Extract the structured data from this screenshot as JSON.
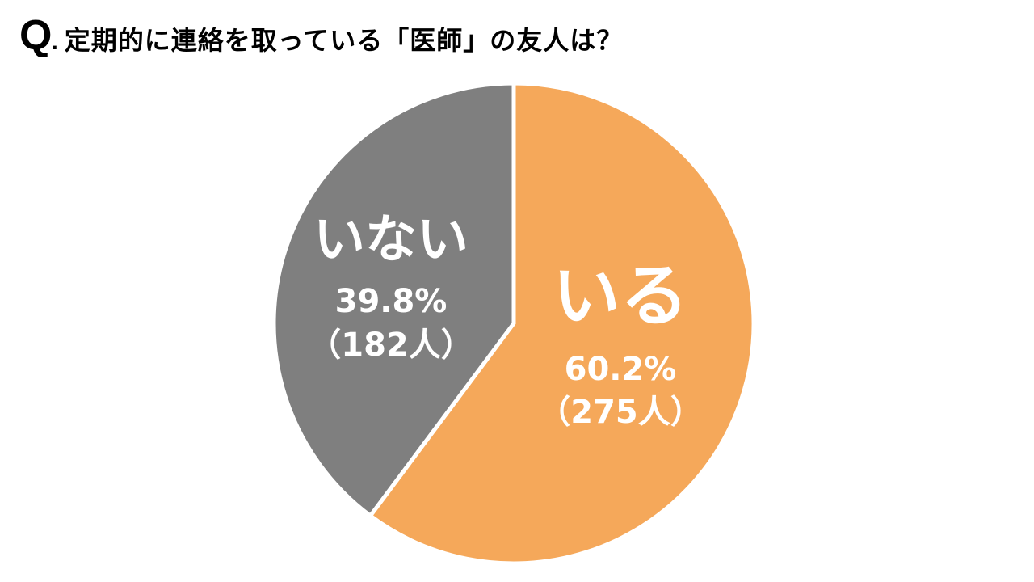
{
  "question": {
    "prefix": "Q",
    "dot": ".",
    "text": "定期的に連絡を取っている「医師」の友人は？"
  },
  "chart_data": {
    "type": "pie",
    "start": "12 o'clock",
    "direction": "clockwise",
    "slices": [
      {
        "label": "いる",
        "percent_label": "60.2%",
        "count_label": "（275人）",
        "value": 60.2,
        "count": 275,
        "color": "#F5A85A"
      },
      {
        "label": "いない",
        "percent_label": "39.8%",
        "count_label": "（182人）",
        "value": 39.8,
        "count": 182,
        "color": "#7F7F7F"
      }
    ]
  }
}
